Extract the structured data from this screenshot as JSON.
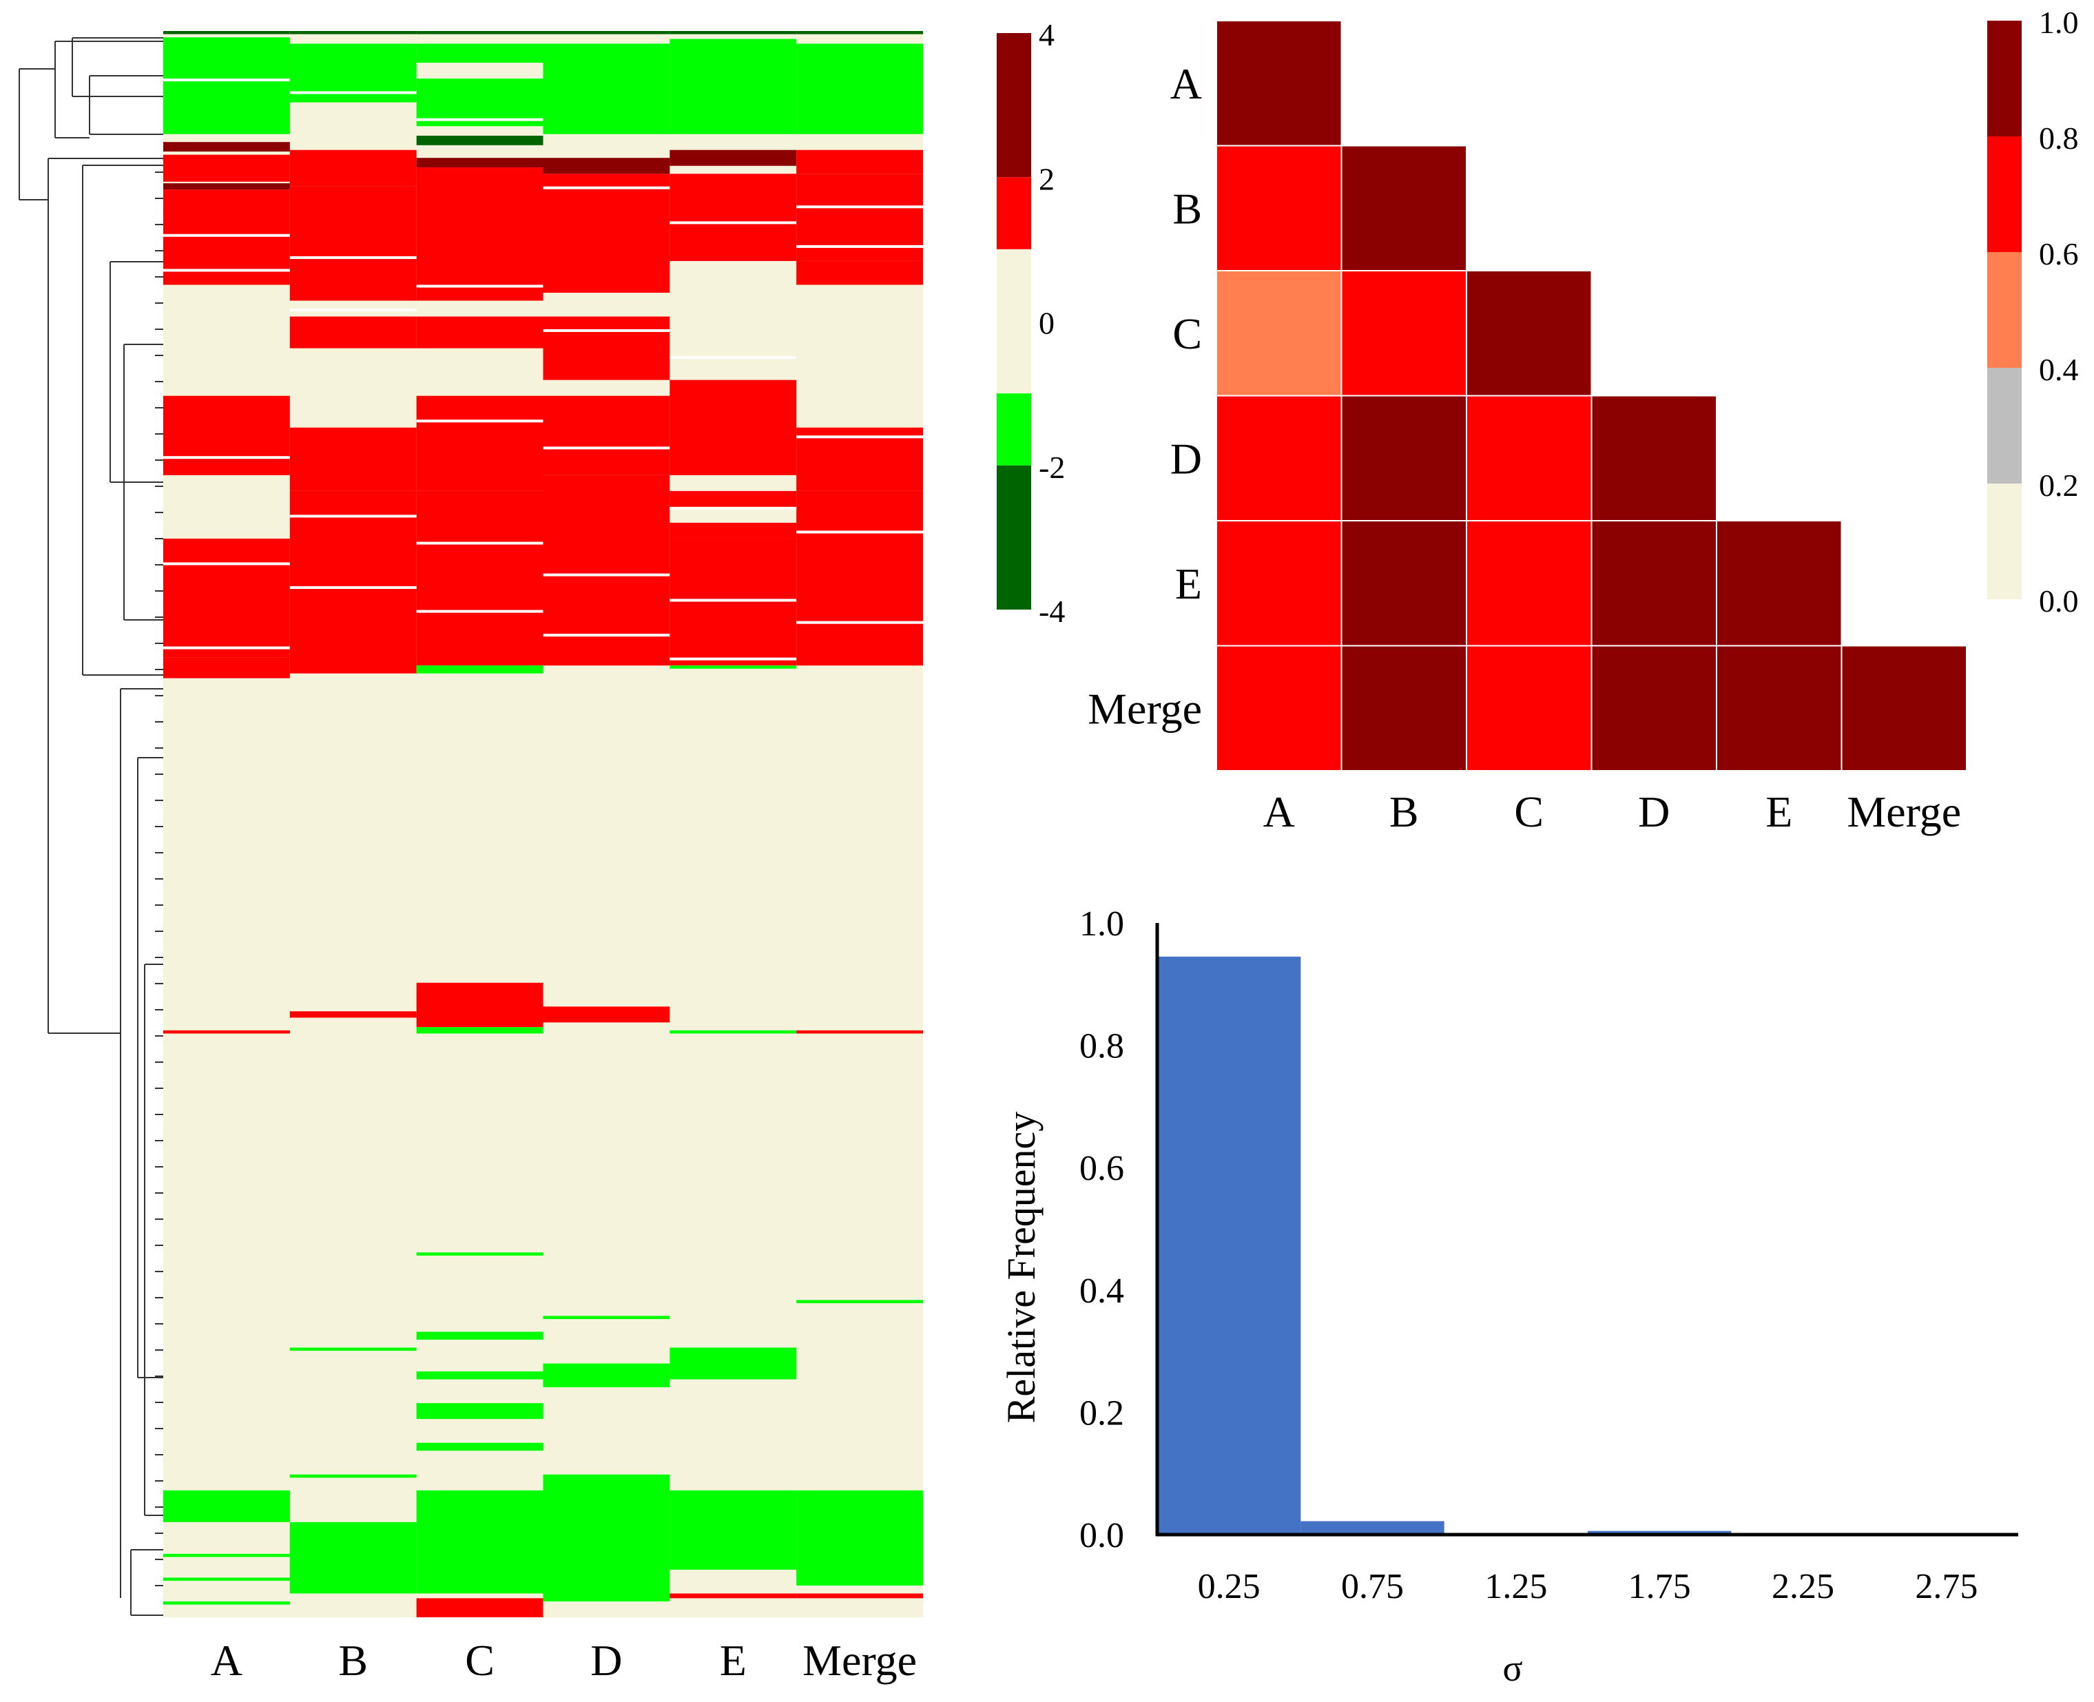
{
  "chart_data": [
    {
      "type": "heatmap",
      "title": "",
      "columns": [
        "A",
        "B",
        "C",
        "D",
        "E",
        "Merge"
      ],
      "colorbar": {
        "ticks": [
          "4",
          "2",
          "0",
          "-2",
          "-4"
        ],
        "bands": [
          {
            "from": 2,
            "to": 4,
            "color": "#8b0000"
          },
          {
            "from": 1,
            "to": 2,
            "color": "#ff0000"
          },
          {
            "from": -1,
            "to": 1,
            "color": "#f5f3dc"
          },
          {
            "from": -2,
            "to": -1,
            "color": "#00ff00"
          },
          {
            "from": -4,
            "to": -2,
            "color": "#006400"
          }
        ]
      },
      "row_fraction": "each column's value is given as a list of [row_start, row_end, value] runs on a 0-1 scale of the row order; unlisted rows are 0",
      "runs": {
        "A": [
          [
            0.0,
            0.002,
            -3
          ],
          [
            0.004,
            0.065,
            -1.5
          ],
          [
            0.07,
            0.076,
            2.5
          ],
          [
            0.078,
            0.095,
            1.5
          ],
          [
            0.096,
            0.1,
            2.5
          ],
          [
            0.1,
            0.16,
            1.5
          ],
          [
            0.23,
            0.28,
            1.5
          ],
          [
            0.32,
            0.395,
            1.5
          ],
          [
            0.395,
            0.408,
            1.5
          ],
          [
            0.63,
            0.632,
            1.5
          ],
          [
            0.92,
            0.94,
            -1.5
          ],
          [
            0.96,
            0.962,
            -1.5
          ],
          [
            0.975,
            0.977,
            -1.5
          ],
          [
            0.99,
            0.992,
            -1.5
          ]
        ],
        "B": [
          [
            0.0,
            0.002,
            -3
          ],
          [
            0.008,
            0.045,
            -1.5
          ],
          [
            0.075,
            0.098,
            1.5
          ],
          [
            0.098,
            0.17,
            1.5
          ],
          [
            0.18,
            0.2,
            1.5
          ],
          [
            0.25,
            0.29,
            1.5
          ],
          [
            0.29,
            0.405,
            1.5
          ],
          [
            0.618,
            0.622,
            1.5
          ],
          [
            0.83,
            0.832,
            -1.5
          ],
          [
            0.91,
            0.912,
            -1.5
          ],
          [
            0.94,
            0.985,
            -1.5
          ]
        ],
        "C": [
          [
            0.0,
            0.002,
            -3
          ],
          [
            0.008,
            0.02,
            -1.5
          ],
          [
            0.03,
            0.06,
            -1.5
          ],
          [
            0.066,
            0.072,
            -3
          ],
          [
            0.08,
            0.086,
            2.5
          ],
          [
            0.086,
            0.17,
            1.5
          ],
          [
            0.18,
            0.2,
            1.5
          ],
          [
            0.23,
            0.29,
            1.5
          ],
          [
            0.29,
            0.4,
            1.5
          ],
          [
            0.4,
            0.405,
            -1.5
          ],
          [
            0.6,
            0.628,
            1.5
          ],
          [
            0.628,
            0.632,
            -1.5
          ],
          [
            0.77,
            0.772,
            -1.5
          ],
          [
            0.82,
            0.825,
            -1.5
          ],
          [
            0.845,
            0.85,
            -1.5
          ],
          [
            0.865,
            0.875,
            -1.5
          ],
          [
            0.89,
            0.895,
            -1.5
          ],
          [
            0.92,
            0.985,
            -1.5
          ],
          [
            0.988,
            1.0,
            1.5
          ]
        ],
        "D": [
          [
            0.0,
            0.002,
            -3
          ],
          [
            0.008,
            0.065,
            -1.5
          ],
          [
            0.08,
            0.09,
            2.5
          ],
          [
            0.09,
            0.165,
            1.5
          ],
          [
            0.18,
            0.22,
            1.5
          ],
          [
            0.23,
            0.28,
            1.5
          ],
          [
            0.28,
            0.4,
            1.5
          ],
          [
            0.615,
            0.625,
            1.5
          ],
          [
            0.81,
            0.812,
            -1.5
          ],
          [
            0.84,
            0.855,
            -1.5
          ],
          [
            0.91,
            0.99,
            -1.5
          ]
        ],
        "E": [
          [
            0.0,
            0.002,
            -3
          ],
          [
            0.005,
            0.065,
            -1.5
          ],
          [
            0.075,
            0.085,
            2.5
          ],
          [
            0.09,
            0.145,
            1.5
          ],
          [
            0.22,
            0.28,
            1.5
          ],
          [
            0.29,
            0.3,
            1.5
          ],
          [
            0.31,
            0.32,
            1.5
          ],
          [
            0.32,
            0.4,
            1.5
          ],
          [
            0.4,
            0.402,
            -1.5
          ],
          [
            0.63,
            0.632,
            -1.5
          ],
          [
            0.83,
            0.85,
            -1.5
          ],
          [
            0.92,
            0.97,
            -1.5
          ],
          [
            0.985,
            0.988,
            1.5
          ]
        ],
        "Merge": [
          [
            0.0,
            0.002,
            -3
          ],
          [
            0.008,
            0.065,
            -1.5
          ],
          [
            0.075,
            0.09,
            1.5
          ],
          [
            0.09,
            0.145,
            1.5
          ],
          [
            0.145,
            0.16,
            1.5
          ],
          [
            0.25,
            0.29,
            1.5
          ],
          [
            0.29,
            0.4,
            1.5
          ],
          [
            0.63,
            0.632,
            1.5
          ],
          [
            0.8,
            0.802,
            -1.5
          ],
          [
            0.92,
            0.98,
            -1.5
          ],
          [
            0.985,
            0.988,
            1.5
          ]
        ]
      }
    },
    {
      "type": "heatmap",
      "title": "",
      "rows": [
        "A",
        "B",
        "C",
        "D",
        "E",
        "Merge"
      ],
      "columns": [
        "A",
        "B",
        "C",
        "D",
        "E",
        "Merge"
      ],
      "values": [
        [
          0.9,
          null,
          null,
          null,
          null,
          null
        ],
        [
          0.7,
          0.9,
          null,
          null,
          null,
          null
        ],
        [
          0.5,
          0.7,
          0.9,
          null,
          null,
          null
        ],
        [
          0.7,
          0.9,
          0.7,
          0.9,
          null,
          null
        ],
        [
          0.7,
          0.9,
          0.7,
          0.9,
          0.9,
          null
        ],
        [
          0.7,
          0.9,
          0.7,
          0.9,
          0.9,
          0.9
        ]
      ],
      "colorbar": {
        "ticks": [
          "1.0",
          "0.8",
          "0.6",
          "0.4",
          "0.2",
          "0.0"
        ],
        "bands": [
          {
            "from": 0.8,
            "to": 1.0,
            "color": "#8b0000"
          },
          {
            "from": 0.6,
            "to": 0.8,
            "color": "#ff0000"
          },
          {
            "from": 0.4,
            "to": 0.6,
            "color": "#ff7f50"
          },
          {
            "from": 0.2,
            "to": 0.4,
            "color": "#bebebe"
          },
          {
            "from": 0.0,
            "to": 0.2,
            "color": "#f5f3dc"
          }
        ]
      }
    },
    {
      "type": "bar",
      "title": "",
      "categories": [
        "0.25",
        "0.75",
        "1.25",
        "1.75",
        "2.25",
        "2.75"
      ],
      "values": [
        0.945,
        0.022,
        0.002,
        0.006,
        0.002,
        0.001
      ],
      "xlabel": "σ",
      "ylabel": "Relative Frequency",
      "ylim": [
        0,
        1.0
      ],
      "yticks": [
        "0.0",
        "0.2",
        "0.4",
        "0.6",
        "0.8",
        "1.0"
      ],
      "bar_color": "#4472c4",
      "grid": false
    }
  ]
}
